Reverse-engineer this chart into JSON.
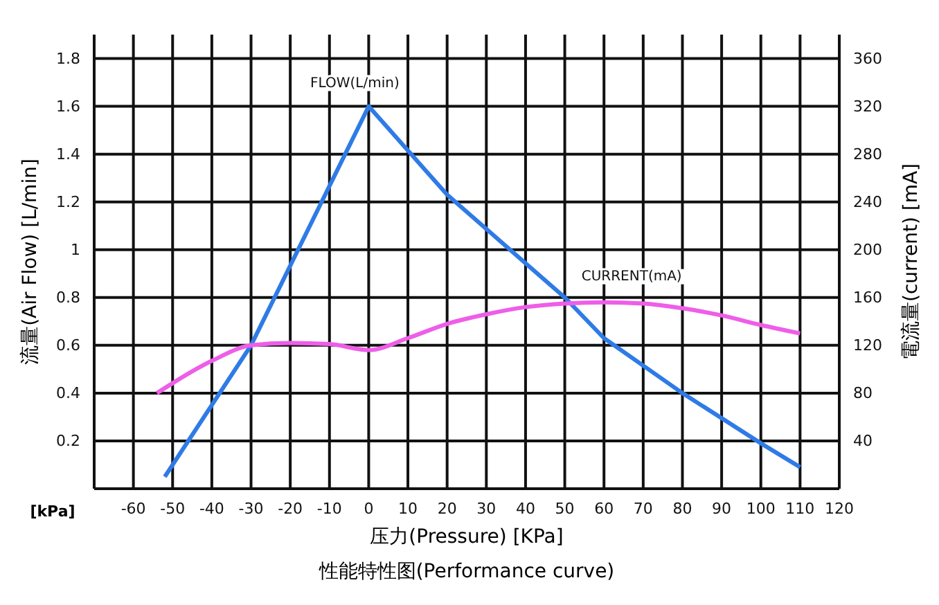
{
  "chart_data": {
    "type": "line",
    "title": "性能特性图(Performance curve)",
    "xlabel": "压力(Pressure) [KPa]",
    "ylabel": "流量(Air Flow) [L/min]",
    "y2label": "電流量(current) [mA]",
    "annotations": [
      "[kPa]"
    ],
    "xlim": [
      -70,
      120
    ],
    "xticks": [
      -60,
      -50,
      -40,
      -30,
      -20,
      -10,
      0,
      10,
      20,
      30,
      40,
      50,
      60,
      70,
      80,
      90,
      100,
      110,
      120
    ],
    "ylim": [
      0,
      1.9
    ],
    "yticks": [
      0.2,
      0.4,
      0.6,
      0.8,
      1.0,
      1.2,
      1.4,
      1.6,
      1.8
    ],
    "y2lim": [
      0,
      380
    ],
    "y2ticks": [
      40,
      80,
      120,
      160,
      200,
      240,
      280,
      320,
      360
    ],
    "grid": true,
    "legend": false,
    "marker": "none",
    "line_style": "solid",
    "series": [
      {
        "name": "FLOW(L/min)",
        "color": "#2f7be6",
        "x": [
          -52,
          -30,
          0,
          20,
          50,
          60,
          80,
          100,
          110
        ],
        "values": [
          0.05,
          0.6,
          1.6,
          1.23,
          0.8,
          0.63,
          0.4,
          0.19,
          0.09
        ]
      },
      {
        "name": "CURRENT(mA)",
        "color": "#ee5ee8",
        "axis": "y2",
        "x": [
          -54,
          -40,
          -30,
          -20,
          -10,
          0,
          10,
          20,
          30,
          40,
          50,
          60,
          70,
          80,
          90,
          100,
          110
        ],
        "values": [
          80,
          107,
          120,
          122,
          121,
          116,
          126,
          138,
          146,
          152,
          155,
          156,
          155,
          151,
          145,
          137,
          130
        ]
      }
    ]
  }
}
